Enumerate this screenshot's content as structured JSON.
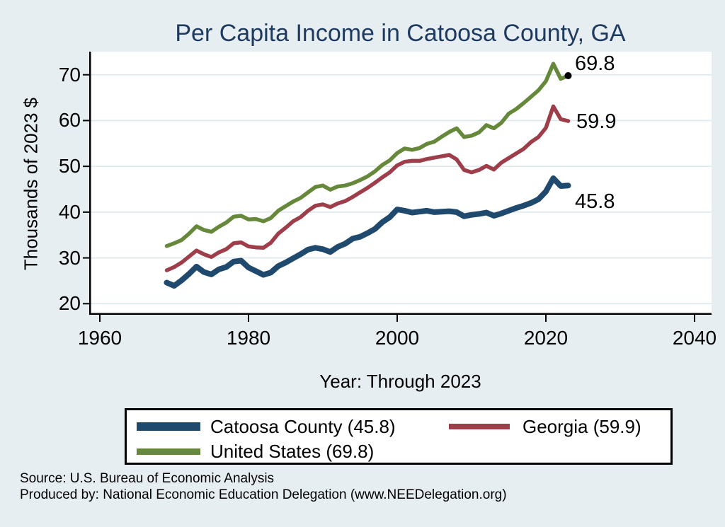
{
  "title": "Per Capita Income in Catoosa County, GA",
  "colors": {
    "background": "#e7eef2",
    "plot_background": "#ffffff",
    "title_text": "#1e3a5f",
    "gridline": "#dde9ee",
    "axis": "#000000",
    "end_marker": "#000000",
    "catoosa": "#20496e",
    "georgia": "#9e3e4a",
    "us": "#65883a"
  },
  "chart_data": {
    "type": "line",
    "title": "Per Capita Income in Catoosa County, GA",
    "xlabel": "Year: Through 2023",
    "ylabel": "Thousands of 2023 $",
    "xlim": [
      1960,
      2040
    ],
    "ylim": [
      17.5,
      75
    ],
    "xticks": [
      1960,
      1980,
      2000,
      2020,
      2040
    ],
    "yticks": [
      20,
      30,
      40,
      50,
      60,
      70
    ],
    "grid": "horizontal",
    "legend_position": "bottom",
    "x": [
      1969,
      1970,
      1971,
      1972,
      1973,
      1974,
      1975,
      1976,
      1977,
      1978,
      1979,
      1980,
      1981,
      1982,
      1983,
      1984,
      1985,
      1986,
      1987,
      1988,
      1989,
      1990,
      1991,
      1992,
      1993,
      1994,
      1995,
      1996,
      1997,
      1998,
      1999,
      2000,
      2001,
      2002,
      2003,
      2004,
      2005,
      2006,
      2007,
      2008,
      2009,
      2010,
      2011,
      2012,
      2013,
      2014,
      2015,
      2016,
      2017,
      2018,
      2019,
      2020,
      2021,
      2022,
      2023
    ],
    "series": [
      {
        "name": "Catoosa County",
        "legend_label": "Catoosa County (45.8)",
        "end_label": "45.8",
        "end_value": 45.8,
        "color_key": "catoosa",
        "line_width": 8,
        "end_marker": false,
        "values": [
          24.6,
          23.9,
          25.1,
          26.5,
          28.1,
          26.9,
          26.4,
          27.5,
          28.0,
          29.2,
          29.4,
          27.9,
          27.1,
          26.3,
          26.8,
          28.2,
          29.0,
          29.9,
          30.8,
          31.8,
          32.2,
          31.9,
          31.3,
          32.4,
          33.1,
          34.2,
          34.6,
          35.4,
          36.3,
          37.8,
          38.9,
          40.6,
          40.3,
          39.9,
          40.1,
          40.3,
          40.0,
          40.1,
          40.2,
          40.0,
          39.1,
          39.4,
          39.6,
          39.9,
          39.2,
          39.7,
          40.3,
          40.9,
          41.4,
          42.0,
          42.8,
          44.5,
          47.4,
          45.7,
          45.8
        ]
      },
      {
        "name": "Georgia",
        "legend_label": "Georgia (59.9)",
        "end_label": "59.9",
        "end_value": 59.9,
        "color_key": "georgia",
        "line_width": 5.5,
        "end_marker": false,
        "values": [
          27.3,
          28.0,
          29.0,
          30.3,
          31.6,
          30.8,
          30.2,
          31.2,
          31.9,
          33.2,
          33.4,
          32.5,
          32.3,
          32.2,
          33.3,
          35.3,
          36.6,
          38.0,
          38.9,
          40.3,
          41.4,
          41.7,
          41.1,
          41.9,
          42.4,
          43.3,
          44.3,
          45.3,
          46.4,
          47.6,
          48.7,
          50.2,
          51.0,
          51.2,
          51.2,
          51.6,
          51.9,
          52.2,
          52.5,
          51.5,
          49.2,
          48.7,
          49.2,
          50.1,
          49.3,
          50.8,
          51.8,
          52.8,
          53.8,
          55.3,
          56.4,
          58.4,
          63.1,
          60.3,
          59.9
        ]
      },
      {
        "name": "United States",
        "legend_label": "United States (69.8)",
        "end_label": "69.8",
        "end_value": 69.8,
        "color_key": "us",
        "line_width": 5.5,
        "end_marker": true,
        "values": [
          32.6,
          33.2,
          33.9,
          35.3,
          36.9,
          36.1,
          35.7,
          36.8,
          37.7,
          39.0,
          39.2,
          38.4,
          38.5,
          38.0,
          38.7,
          40.3,
          41.3,
          42.3,
          43.1,
          44.3,
          45.5,
          45.8,
          44.9,
          45.6,
          45.8,
          46.3,
          47.0,
          47.8,
          48.9,
          50.3,
          51.3,
          52.9,
          53.9,
          53.6,
          54.0,
          54.9,
          55.4,
          56.5,
          57.5,
          58.3,
          56.4,
          56.7,
          57.4,
          59.0,
          58.3,
          59.5,
          61.5,
          62.5,
          63.8,
          65.2,
          66.6,
          68.6,
          72.4,
          69.1,
          69.8
        ]
      }
    ]
  },
  "footer": {
    "source": "Source: U.S. Bureau of Economic Analysis",
    "producer": "Produced by: National Economic Education Delegation (www.NEEDelegation.org)"
  }
}
